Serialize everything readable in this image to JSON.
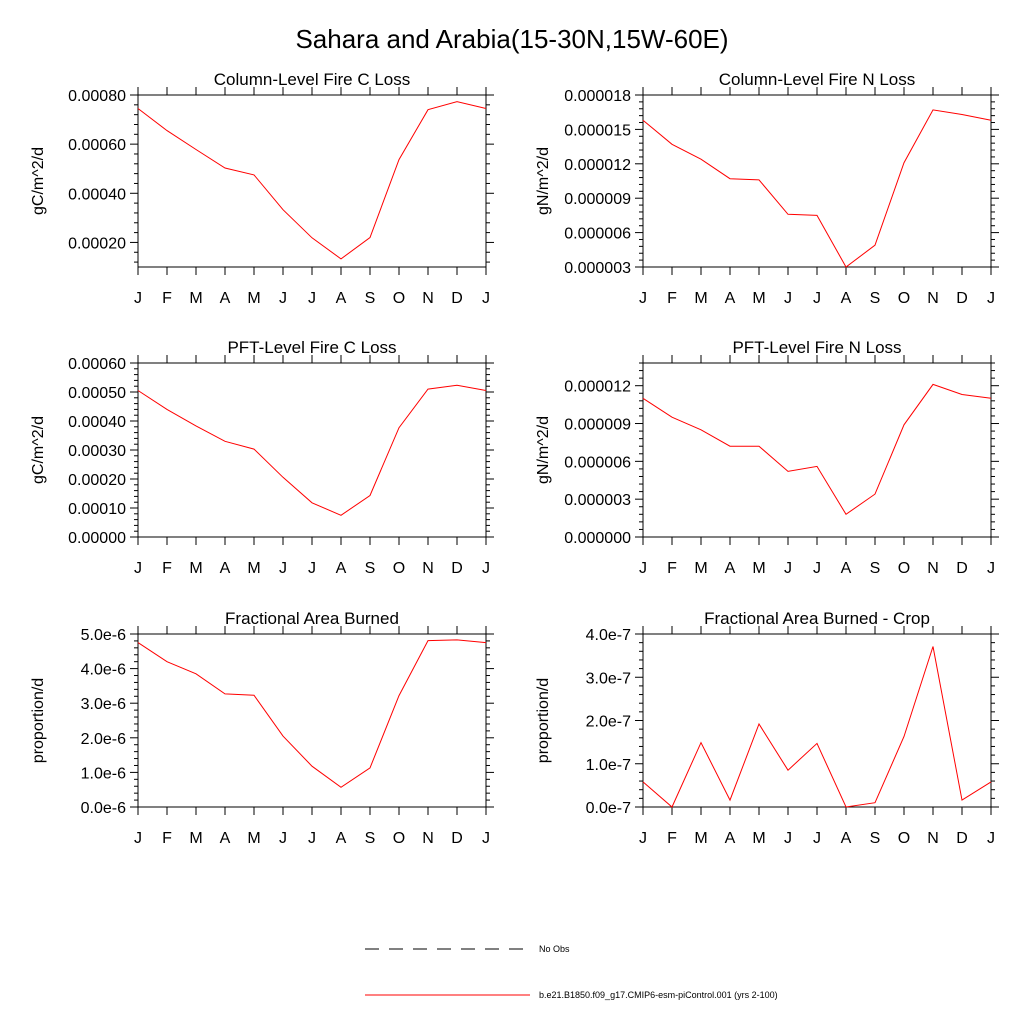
{
  "figure_title": "Sahara and Arabia(15-30N,15W-60E)",
  "series_colors": {
    "model": "#ff0000",
    "obs": "#000000",
    "axes": "#000000"
  },
  "legend": {
    "entries": [
      {
        "label": "No Obs",
        "style": "dashed",
        "color": "#000000"
      },
      {
        "label": "b.e21.B1850.f09_g17.CMIP6-esm-piControl.001 (yrs 2-100)",
        "style": "solid",
        "color": "#ff0000"
      }
    ]
  },
  "chart_data": [
    {
      "type": "line",
      "title": "Column-Level Fire C Loss",
      "ylabel": "gC/m^2/d",
      "xlabel": "",
      "categories": [
        "J",
        "F",
        "M",
        "A",
        "M",
        "J",
        "J",
        "A",
        "S",
        "O",
        "N",
        "D",
        "J"
      ],
      "ylim": [
        0.0001,
        0.0008
      ],
      "yticks": [
        0.0002,
        0.0004,
        0.0006,
        0.0008
      ],
      "yticklabels": [
        "0.00020",
        "0.00040",
        "0.00060",
        "0.00080"
      ],
      "series": [
        {
          "name": "b.e21.B1850.f09_g17.CMIP6-esm-piControl.001 (yrs 2-100)",
          "values": [
            0.000745,
            0.000655,
            0.000578,
            0.000503,
            0.000475,
            0.000333,
            0.000219,
            0.000133,
            0.00022,
            0.000537,
            0.00074,
            0.000773,
            0.000745
          ]
        }
      ]
    },
    {
      "type": "line",
      "title": "Column-Level Fire N Loss",
      "ylabel": "gN/m^2/d",
      "xlabel": "",
      "categories": [
        "J",
        "F",
        "M",
        "A",
        "M",
        "J",
        "J",
        "A",
        "S",
        "O",
        "N",
        "D",
        "J"
      ],
      "ylim": [
        3e-06,
        1.8e-05
      ],
      "yticks": [
        3e-06,
        6e-06,
        9e-06,
        1.2e-05,
        1.5e-05,
        1.8e-05
      ],
      "yticklabels": [
        "0.000003",
        "0.000006",
        "0.000009",
        "0.000012",
        "0.000015",
        "0.000018"
      ],
      "series": [
        {
          "name": "b.e21.B1850.f09_g17.CMIP6-esm-piControl.001 (yrs 2-100)",
          "values": [
            1.58e-05,
            1.37e-05,
            1.24e-05,
            1.07e-05,
            1.06e-05,
            7.6e-06,
            7.5e-06,
            3e-06,
            4.9e-06,
            1.21e-05,
            1.67e-05,
            1.63e-05,
            1.58e-05
          ]
        }
      ]
    },
    {
      "type": "line",
      "title": "PFT-Level Fire C Loss",
      "ylabel": "gC/m^2/d",
      "xlabel": "",
      "categories": [
        "J",
        "F",
        "M",
        "A",
        "M",
        "J",
        "J",
        "A",
        "S",
        "O",
        "N",
        "D",
        "J"
      ],
      "ylim": [
        0,
        0.0006
      ],
      "yticks": [
        0,
        0.0001,
        0.0002,
        0.0003,
        0.0004,
        0.0005,
        0.0006
      ],
      "yticklabels": [
        "0.00000",
        "0.00010",
        "0.00020",
        "0.00030",
        "0.00040",
        "0.00050",
        "0.00060"
      ],
      "series": [
        {
          "name": "b.e21.B1850.f09_g17.CMIP6-esm-piControl.001 (yrs 2-100)",
          "values": [
            0.000505,
            0.00044,
            0.000383,
            0.00033,
            0.000303,
            0.000206,
            0.000118,
            7.5e-05,
            0.000143,
            0.000377,
            0.00051,
            0.000523,
            0.000505
          ]
        }
      ]
    },
    {
      "type": "line",
      "title": "PFT-Level Fire N Loss",
      "ylabel": "gN/m^2/d",
      "xlabel": "",
      "categories": [
        "J",
        "F",
        "M",
        "A",
        "M",
        "J",
        "J",
        "A",
        "S",
        "O",
        "N",
        "D",
        "J"
      ],
      "ylim": [
        0,
        1.38e-05
      ],
      "yticks": [
        0,
        3e-06,
        6e-06,
        9e-06,
        1.2e-05
      ],
      "yticklabels": [
        "0.000000",
        "0.000003",
        "0.000006",
        "0.000009",
        "0.000012"
      ],
      "series": [
        {
          "name": "b.e21.B1850.f09_g17.CMIP6-esm-piControl.001 (yrs 2-100)",
          "values": [
            1.1e-05,
            9.5e-06,
            8.5e-06,
            7.2e-06,
            7.2e-06,
            5.2e-06,
            5.6e-06,
            1.8e-06,
            3.4e-06,
            8.9e-06,
            1.21e-05,
            1.13e-05,
            1.1e-05
          ]
        }
      ]
    },
    {
      "type": "line",
      "title": "Fractional Area Burned",
      "ylabel": "proportion/d",
      "xlabel": "",
      "categories": [
        "J",
        "F",
        "M",
        "A",
        "M",
        "J",
        "J",
        "A",
        "S",
        "O",
        "N",
        "D",
        "J"
      ],
      "ylim": [
        0,
        5e-06
      ],
      "yticks": [
        0,
        1e-06,
        2e-06,
        3e-06,
        4e-06,
        5e-06
      ],
      "yticklabels": [
        "0.0e-6",
        "1.0e-6",
        "2.0e-6",
        "3.0e-6",
        "4.0e-6",
        "5.0e-6"
      ],
      "series": [
        {
          "name": "b.e21.B1850.f09_g17.CMIP6-esm-piControl.001 (yrs 2-100)",
          "values": [
            4.75e-06,
            4.2e-06,
            3.85e-06,
            3.27e-06,
            3.23e-06,
            2.05e-06,
            1.18e-06,
            5.7e-07,
            1.13e-06,
            3.22e-06,
            4.81e-06,
            4.83e-06,
            4.75e-06
          ]
        }
      ]
    },
    {
      "type": "line",
      "title": "Fractional Area Burned - Crop",
      "ylabel": "proportion/d",
      "xlabel": "",
      "categories": [
        "J",
        "F",
        "M",
        "A",
        "M",
        "J",
        "J",
        "A",
        "S",
        "O",
        "N",
        "D",
        "J"
      ],
      "ylim": [
        0,
        4e-07
      ],
      "yticks": [
        0,
        1e-07,
        2e-07,
        3e-07,
        4e-07
      ],
      "yticklabels": [
        "0.0e-7",
        "1.0e-7",
        "2.0e-7",
        "3.0e-7",
        "4.0e-7"
      ],
      "series": [
        {
          "name": "b.e21.B1850.f09_g17.CMIP6-esm-piControl.001 (yrs 2-100)",
          "values": [
            5.8e-08,
            0.0,
            1.49e-07,
            1.6e-08,
            1.92e-07,
            8.5e-08,
            1.47e-07,
            0.0,
            1e-08,
            1.63e-07,
            3.71e-07,
            1.6e-08,
            5.8e-08
          ]
        }
      ]
    }
  ]
}
